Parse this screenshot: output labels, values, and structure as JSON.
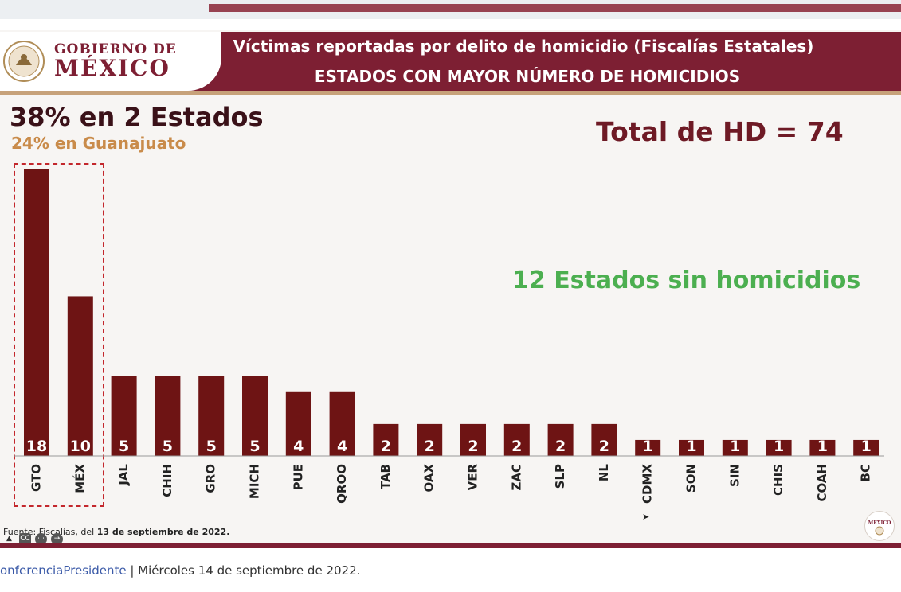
{
  "logo": {
    "line1": "GOBIERNO DE",
    "line2": "MÉXICO",
    "small": "MÉXICO"
  },
  "header": {
    "title": "Víctimas reportadas por delito de homicidio (Fiscalías Estatales)",
    "subtitle": "ESTADOS CON MAYOR NÚMERO DE HOMICIDIOS"
  },
  "annotations": {
    "headline": "38% en 2 Estados",
    "subheadline": "24% en Guanajuato",
    "total": "Total de HD = 74",
    "states_without": "12 Estados sin homicidios"
  },
  "source": {
    "prefix": "Fuente: Fiscalías, del ",
    "date": "13 de septiembre de 2022."
  },
  "footer": {
    "hashtag": "onferenciaPresidente",
    "rest": " | Miércoles 14 de septiembre de 2022."
  },
  "colors": {
    "bar": "#6e1414",
    "header": "#7d1f33",
    "accent_gold": "#c98b4a",
    "green": "#4caf50",
    "highlight": "#c3272c"
  },
  "chart_data": {
    "type": "bar",
    "categories": [
      "GTO",
      "MÉX",
      "JAL",
      "CHIH",
      "GRO",
      "MICH",
      "PUE",
      "QROO",
      "TAB",
      "OAX",
      "VER",
      "ZAC",
      "SLP",
      "NL",
      "CDMX",
      "SON",
      "SIN",
      "CHIS",
      "COAH",
      "BC"
    ],
    "values": [
      18,
      10,
      5,
      5,
      5,
      5,
      4,
      4,
      2,
      2,
      2,
      2,
      2,
      2,
      1,
      1,
      1,
      1,
      1,
      1
    ],
    "title": "Víctimas reportadas por delito de homicidio (Fiscalías Estatales)",
    "xlabel": "",
    "ylabel": "",
    "ylim": [
      0,
      18
    ],
    "grid": false,
    "highlighted": [
      "GTO",
      "MÉX"
    ]
  }
}
